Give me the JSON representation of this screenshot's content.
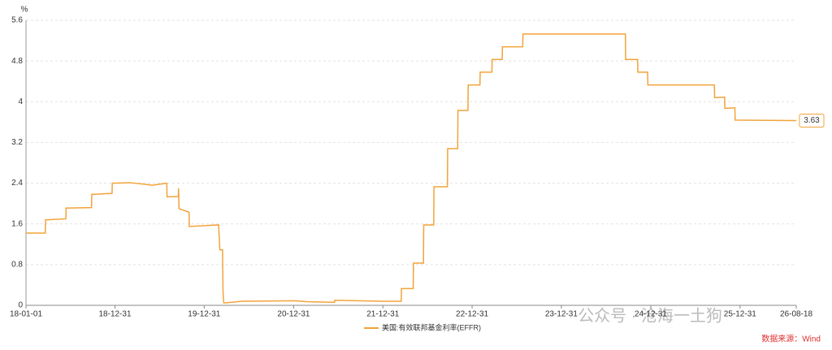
{
  "chart_data": {
    "type": "line",
    "y_label": "%",
    "x": [
      "18-01-01",
      "18-03-21",
      "18-03-22",
      "18-06-13",
      "18-06-14",
      "18-09-26",
      "18-09-27",
      "18-12-19",
      "18-12-20",
      "19-03-01",
      "19-05-01",
      "19-06-01",
      "19-07-31",
      "19-08-01",
      "19-09-16",
      "19-09-17",
      "19-09-19",
      "19-10-30",
      "19-10-31",
      "20-02-28",
      "20-03-04",
      "20-03-15",
      "20-03-17",
      "20-03-20",
      "20-04-01",
      "20-06-01",
      "21-01-04",
      "21-03-01",
      "21-06-16",
      "21-06-17",
      "21-12-31",
      "22-03-16",
      "22-03-17",
      "22-05-04",
      "22-05-05",
      "22-06-15",
      "22-06-16",
      "22-07-27",
      "22-07-28",
      "22-09-21",
      "22-09-22",
      "22-11-02",
      "22-11-03",
      "22-12-14",
      "22-12-15",
      "23-02-01",
      "23-02-02",
      "23-03-22",
      "23-03-23",
      "23-05-03",
      "23-05-04",
      "23-07-26",
      "23-07-27",
      "24-09-18",
      "24-09-19",
      "24-11-07",
      "24-11-08",
      "24-12-18",
      "24-12-19",
      "25-09-17",
      "25-09-18",
      "25-10-29",
      "25-10-30",
      "25-12-10",
      "25-12-11",
      "26-08-18"
    ],
    "series": [
      {
        "name": "美国:有效联邦基金利率(EFFR)",
        "color": "#f2a33a",
        "values": [
          1.42,
          1.42,
          1.68,
          1.7,
          1.91,
          1.92,
          2.18,
          2.2,
          2.4,
          2.41,
          2.38,
          2.36,
          2.4,
          2.13,
          2.14,
          2.3,
          1.9,
          1.83,
          1.55,
          1.58,
          1.09,
          1.09,
          0.25,
          0.05,
          0.05,
          0.08,
          0.09,
          0.07,
          0.06,
          0.1,
          0.08,
          0.08,
          0.33,
          0.33,
          0.83,
          0.83,
          1.58,
          1.58,
          2.33,
          2.33,
          3.08,
          3.08,
          3.83,
          3.83,
          4.33,
          4.33,
          4.58,
          4.58,
          4.83,
          4.83,
          5.08,
          5.08,
          5.33,
          5.33,
          4.83,
          4.83,
          4.58,
          4.58,
          4.33,
          4.33,
          4.08,
          4.09,
          3.87,
          3.88,
          3.64,
          3.63
        ]
      }
    ],
    "ylim": [
      0,
      5.6
    ],
    "yticks": [
      0,
      0.8,
      1.6,
      2.4,
      3.2,
      4,
      4.8,
      5.6
    ],
    "xlim": [
      "18-01-01",
      "26-08-18"
    ],
    "xticks": [
      "18-01-01",
      "18-12-31",
      "19-12-31",
      "20-12-31",
      "21-12-31",
      "22-12-31",
      "23-12-31",
      "24-12-31",
      "25-12-31",
      "26-08-18"
    ],
    "grid": true,
    "source": "数据来源：Wind",
    "watermark": "公众号 · 沧海一土狗"
  }
}
